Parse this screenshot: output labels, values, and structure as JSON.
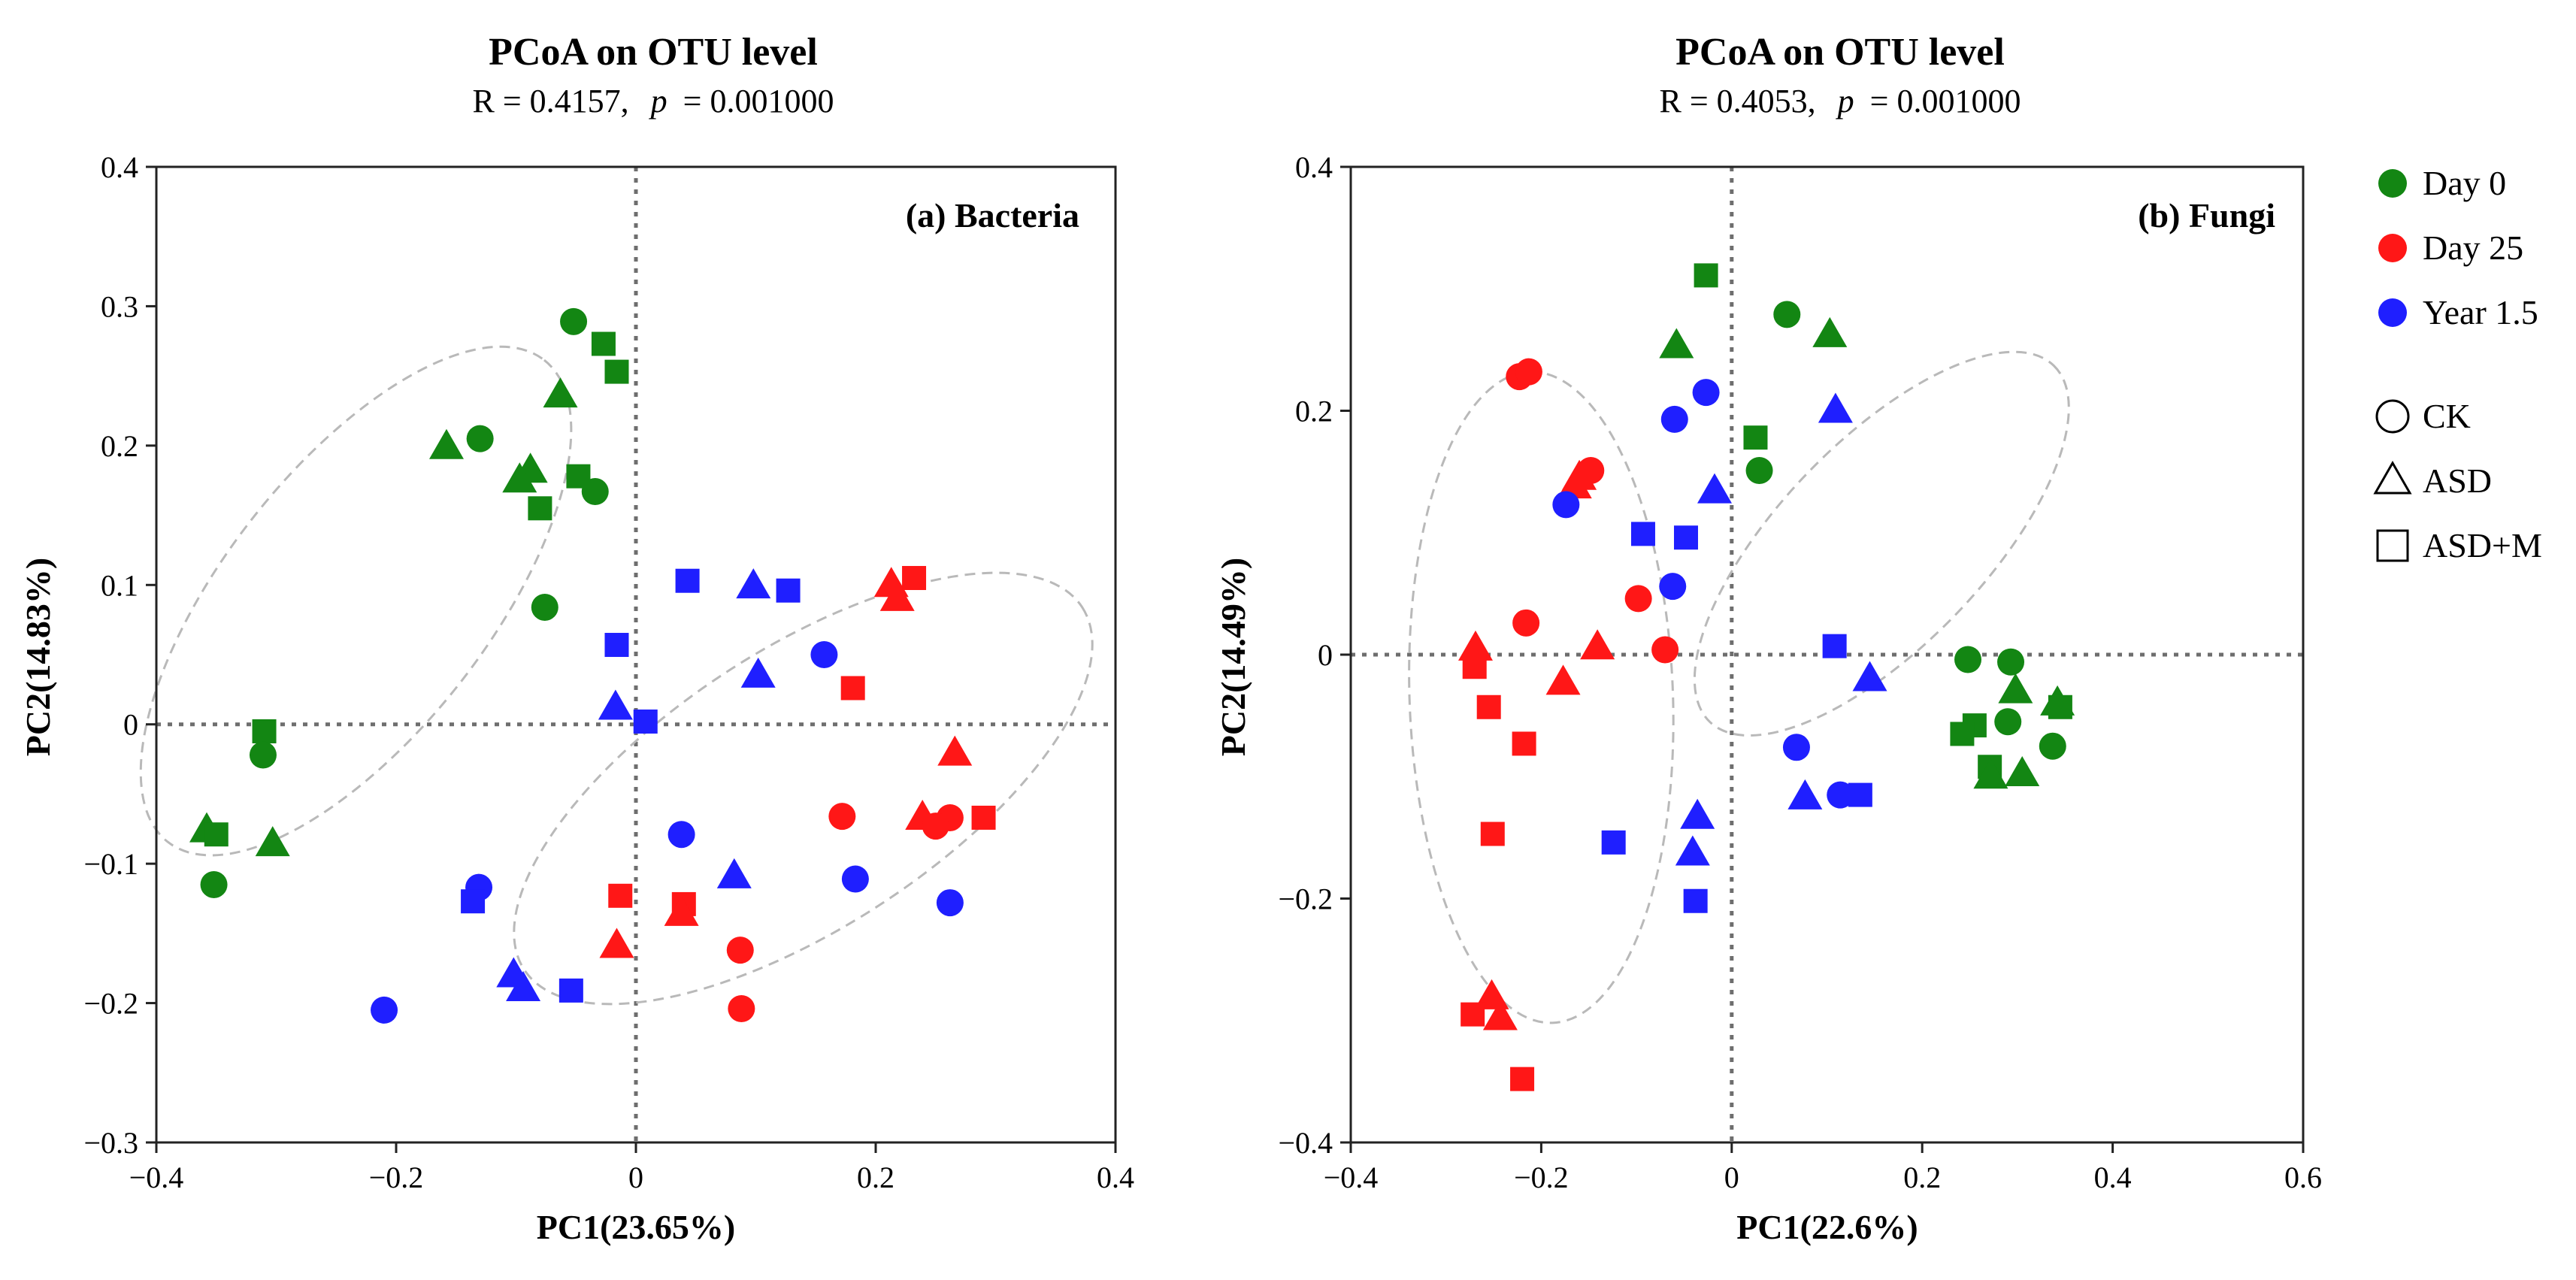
{
  "colors": {
    "day0": "#138613",
    "day25": "#ff1717",
    "year15": "#1f1fff",
    "axis": "#222222",
    "ellipse": "#b9b9b9",
    "zero": "#6e6e6e"
  },
  "legend": {
    "groups": [
      {
        "key": "day0",
        "label": "Day 0"
      },
      {
        "key": "day25",
        "label": "Day 25"
      },
      {
        "key": "year15",
        "label": "Year 1.5"
      }
    ],
    "treatments": [
      {
        "key": "circle",
        "label": "CK"
      },
      {
        "key": "triangle",
        "label": "ASD"
      },
      {
        "key": "square",
        "label": "ASD+M"
      }
    ]
  },
  "chart_data": [
    {
      "type": "scatter",
      "title": "PCoA on OTU level",
      "stat_r": "R = 0.4157,",
      "stat_p_label": "p",
      "stat_p_value": "= 0.001000",
      "panel_label": "(a) Bacteria",
      "xlabel": "PC1(23.65%)",
      "ylabel": "PC2(14.83%)",
      "xlim": [
        -0.4,
        0.4
      ],
      "ylim": [
        -0.3,
        0.4
      ],
      "xticks": [
        -0.4,
        -0.2,
        0,
        0.2,
        0.4
      ],
      "xtick_labels": [
        "−0.4",
        "−0.2",
        "0",
        "0.2",
        "0.4"
      ],
      "yticks": [
        -0.3,
        -0.2,
        -0.1,
        0,
        0.1,
        0.2,
        0.3,
        0.4
      ],
      "ytick_labels": [
        "−0.3",
        "−0.2",
        "−0.1",
        "0",
        "0.1",
        "0.2",
        "0.3",
        "0.4"
      ],
      "ellipses": [
        {
          "cx": -0.2335,
          "cy": 0.0885,
          "rx": 0.255,
          "ry": 0.095,
          "angle_deg": 52
        },
        {
          "cx": 0.1395,
          "cy": -0.046,
          "rx": 0.2775,
          "ry": 0.1,
          "angle_deg": 33
        }
      ],
      "points": [
        {
          "x": -0.052,
          "y": 0.289,
          "g": "day0",
          "s": "circle"
        },
        {
          "x": -0.027,
          "y": 0.273,
          "g": "day0",
          "s": "square"
        },
        {
          "x": -0.016,
          "y": 0.253,
          "g": "day0",
          "s": "square"
        },
        {
          "x": -0.13,
          "y": 0.205,
          "g": "day0",
          "s": "circle"
        },
        {
          "x": -0.063,
          "y": 0.236,
          "g": "day0",
          "s": "triangle"
        },
        {
          "x": -0.158,
          "y": 0.199,
          "g": "day0",
          "s": "triangle"
        },
        {
          "x": -0.088,
          "y": 0.182,
          "g": "day0",
          "s": "triangle"
        },
        {
          "x": -0.097,
          "y": 0.175,
          "g": "day0",
          "s": "triangle"
        },
        {
          "x": -0.048,
          "y": 0.178,
          "g": "day0",
          "s": "square"
        },
        {
          "x": -0.034,
          "y": 0.167,
          "g": "day0",
          "s": "circle"
        },
        {
          "x": -0.08,
          "y": 0.155,
          "g": "day0",
          "s": "square"
        },
        {
          "x": -0.076,
          "y": 0.084,
          "g": "day0",
          "s": "circle"
        },
        {
          "x": -0.31,
          "y": -0.005,
          "g": "day0",
          "s": "square"
        },
        {
          "x": -0.311,
          "y": -0.022,
          "g": "day0",
          "s": "circle"
        },
        {
          "x": -0.358,
          "y": -0.076,
          "g": "day0",
          "s": "triangle"
        },
        {
          "x": -0.35,
          "y": -0.079,
          "g": "day0",
          "s": "square"
        },
        {
          "x": -0.303,
          "y": -0.086,
          "g": "day0",
          "s": "triangle"
        },
        {
          "x": -0.352,
          "y": -0.115,
          "g": "day0",
          "s": "circle"
        },
        {
          "x": 0.213,
          "y": 0.1,
          "g": "day25",
          "s": "triangle"
        },
        {
          "x": 0.232,
          "y": 0.105,
          "g": "day25",
          "s": "square"
        },
        {
          "x": 0.218,
          "y": 0.09,
          "g": "day25",
          "s": "triangle"
        },
        {
          "x": 0.181,
          "y": 0.026,
          "g": "day25",
          "s": "square"
        },
        {
          "x": 0.266,
          "y": -0.021,
          "g": "day25",
          "s": "triangle"
        },
        {
          "x": 0.172,
          "y": -0.066,
          "g": "day25",
          "s": "circle"
        },
        {
          "x": 0.239,
          "y": -0.067,
          "g": "day25",
          "s": "triangle"
        },
        {
          "x": 0.262,
          "y": -0.067,
          "g": "day25",
          "s": "circle"
        },
        {
          "x": 0.25,
          "y": -0.073,
          "g": "day25",
          "s": "circle"
        },
        {
          "x": 0.29,
          "y": -0.067,
          "g": "day25",
          "s": "square"
        },
        {
          "x": -0.013,
          "y": -0.123,
          "g": "day25",
          "s": "square"
        },
        {
          "x": 0.04,
          "y": -0.129,
          "g": "day25",
          "s": "square"
        },
        {
          "x": 0.038,
          "y": -0.136,
          "g": "day25",
          "s": "triangle"
        },
        {
          "x": -0.016,
          "y": -0.159,
          "g": "day25",
          "s": "triangle"
        },
        {
          "x": 0.087,
          "y": -0.162,
          "g": "day25",
          "s": "circle"
        },
        {
          "x": 0.088,
          "y": -0.204,
          "g": "day25",
          "s": "circle"
        },
        {
          "x": 0.043,
          "y": 0.103,
          "g": "year15",
          "s": "square"
        },
        {
          "x": 0.098,
          "y": 0.099,
          "g": "year15",
          "s": "triangle"
        },
        {
          "x": 0.127,
          "y": 0.096,
          "g": "year15",
          "s": "square"
        },
        {
          "x": -0.016,
          "y": 0.057,
          "g": "year15",
          "s": "square"
        },
        {
          "x": 0.157,
          "y": 0.05,
          "g": "year15",
          "s": "circle"
        },
        {
          "x": 0.102,
          "y": 0.035,
          "g": "year15",
          "s": "triangle"
        },
        {
          "x": -0.017,
          "y": 0.012,
          "g": "year15",
          "s": "triangle"
        },
        {
          "x": 0.008,
          "y": 0.002,
          "g": "year15",
          "s": "square"
        },
        {
          "x": 0.038,
          "y": -0.079,
          "g": "year15",
          "s": "circle"
        },
        {
          "x": 0.082,
          "y": -0.109,
          "g": "year15",
          "s": "triangle"
        },
        {
          "x": 0.183,
          "y": -0.111,
          "g": "year15",
          "s": "circle"
        },
        {
          "x": 0.262,
          "y": -0.128,
          "g": "year15",
          "s": "circle"
        },
        {
          "x": -0.131,
          "y": -0.117,
          "g": "year15",
          "s": "circle"
        },
        {
          "x": -0.136,
          "y": -0.127,
          "g": "year15",
          "s": "square"
        },
        {
          "x": -0.102,
          "y": -0.18,
          "g": "year15",
          "s": "triangle"
        },
        {
          "x": -0.094,
          "y": -0.19,
          "g": "year15",
          "s": "triangle"
        },
        {
          "x": -0.054,
          "y": -0.191,
          "g": "year15",
          "s": "square"
        },
        {
          "x": -0.21,
          "y": -0.205,
          "g": "year15",
          "s": "circle"
        }
      ]
    },
    {
      "type": "scatter",
      "title": "PCoA on OTU level",
      "stat_r": "R = 0.4053,",
      "stat_p_label": "p",
      "stat_p_value": "= 0.001000",
      "panel_label": "(b) Fungi",
      "xlabel": "PC1(22.6%)",
      "ylabel": "PC2(14.49%)",
      "xlim": [
        -0.4,
        0.6
      ],
      "ylim": [
        -0.4,
        0.4
      ],
      "xticks": [
        -0.4,
        -0.2,
        0,
        0.2,
        0.4,
        0.6
      ],
      "xtick_labels": [
        "−0.4",
        "−0.2",
        "0",
        "0.2",
        "0.4",
        "0.6"
      ],
      "yticks": [
        -0.4,
        -0.2,
        0,
        0.2,
        0.4
      ],
      "ytick_labels": [
        "−0.4",
        "−0.2",
        "0",
        "0.2",
        "0.4"
      ],
      "ellipses": [
        {
          "cx": -0.2,
          "cy": -0.035,
          "rx": 0.342,
          "ry": 0.108,
          "angle_deg": 92
        },
        {
          "cx": 0.1575,
          "cy": 0.091,
          "rx": 0.26,
          "ry": 0.084,
          "angle_deg": 46
        }
      ],
      "points": [
        {
          "x": -0.027,
          "y": 0.311,
          "g": "day0",
          "s": "square"
        },
        {
          "x": 0.058,
          "y": 0.279,
          "g": "day0",
          "s": "circle"
        },
        {
          "x": 0.103,
          "y": 0.262,
          "g": "day0",
          "s": "triangle"
        },
        {
          "x": -0.058,
          "y": 0.253,
          "g": "day0",
          "s": "triangle"
        },
        {
          "x": 0.025,
          "y": 0.178,
          "g": "day0",
          "s": "square"
        },
        {
          "x": 0.029,
          "y": 0.151,
          "g": "day0",
          "s": "circle"
        },
        {
          "x": 0.248,
          "y": -0.004,
          "g": "day0",
          "s": "circle"
        },
        {
          "x": 0.293,
          "y": -0.006,
          "g": "day0",
          "s": "circle"
        },
        {
          "x": 0.342,
          "y": -0.04,
          "g": "day0",
          "s": "triangle"
        },
        {
          "x": 0.345,
          "y": -0.043,
          "g": "day0",
          "s": "square"
        },
        {
          "x": 0.298,
          "y": -0.03,
          "g": "day0",
          "s": "triangle"
        },
        {
          "x": 0.255,
          "y": -0.058,
          "g": "day0",
          "s": "square"
        },
        {
          "x": 0.29,
          "y": -0.055,
          "g": "day0",
          "s": "circle"
        },
        {
          "x": 0.242,
          "y": -0.065,
          "g": "day0",
          "s": "square"
        },
        {
          "x": 0.337,
          "y": -0.075,
          "g": "day0",
          "s": "circle"
        },
        {
          "x": 0.271,
          "y": -0.092,
          "g": "day0",
          "s": "square"
        },
        {
          "x": 0.305,
          "y": -0.098,
          "g": "day0",
          "s": "triangle"
        },
        {
          "x": 0.272,
          "y": -0.1,
          "g": "day0",
          "s": "triangle"
        },
        {
          "x": -0.223,
          "y": 0.228,
          "g": "day25",
          "s": "circle"
        },
        {
          "x": -0.213,
          "y": 0.232,
          "g": "day25",
          "s": "circle"
        },
        {
          "x": -0.148,
          "y": 0.151,
          "g": "day25",
          "s": "circle"
        },
        {
          "x": -0.16,
          "y": 0.145,
          "g": "day25",
          "s": "triangle"
        },
        {
          "x": -0.165,
          "y": 0.138,
          "g": "day25",
          "s": "triangle"
        },
        {
          "x": -0.098,
          "y": 0.046,
          "g": "day25",
          "s": "circle"
        },
        {
          "x": -0.216,
          "y": 0.026,
          "g": "day25",
          "s": "circle"
        },
        {
          "x": -0.07,
          "y": 0.004,
          "g": "day25",
          "s": "circle"
        },
        {
          "x": -0.141,
          "y": 0.006,
          "g": "day25",
          "s": "triangle"
        },
        {
          "x": -0.269,
          "y": 0.005,
          "g": "day25",
          "s": "triangle"
        },
        {
          "x": -0.27,
          "y": -0.01,
          "g": "day25",
          "s": "square"
        },
        {
          "x": -0.177,
          "y": -0.023,
          "g": "day25",
          "s": "triangle"
        },
        {
          "x": -0.255,
          "y": -0.043,
          "g": "day25",
          "s": "square"
        },
        {
          "x": -0.218,
          "y": -0.073,
          "g": "day25",
          "s": "square"
        },
        {
          "x": -0.251,
          "y": -0.147,
          "g": "day25",
          "s": "square"
        },
        {
          "x": -0.252,
          "y": -0.281,
          "g": "day25",
          "s": "triangle"
        },
        {
          "x": -0.272,
          "y": -0.295,
          "g": "day25",
          "s": "square"
        },
        {
          "x": -0.243,
          "y": -0.298,
          "g": "day25",
          "s": "triangle"
        },
        {
          "x": -0.22,
          "y": -0.348,
          "g": "day25",
          "s": "square"
        },
        {
          "x": -0.027,
          "y": 0.215,
          "g": "year15",
          "s": "circle"
        },
        {
          "x": -0.06,
          "y": 0.193,
          "g": "year15",
          "s": "circle"
        },
        {
          "x": 0.109,
          "y": 0.2,
          "g": "year15",
          "s": "triangle"
        },
        {
          "x": -0.018,
          "y": 0.134,
          "g": "year15",
          "s": "triangle"
        },
        {
          "x": -0.174,
          "y": 0.123,
          "g": "year15",
          "s": "circle"
        },
        {
          "x": -0.093,
          "y": 0.099,
          "g": "year15",
          "s": "square"
        },
        {
          "x": -0.048,
          "y": 0.096,
          "g": "year15",
          "s": "square"
        },
        {
          "x": -0.062,
          "y": 0.056,
          "g": "year15",
          "s": "circle"
        },
        {
          "x": 0.108,
          "y": 0.007,
          "g": "year15",
          "s": "square"
        },
        {
          "x": 0.145,
          "y": -0.02,
          "g": "year15",
          "s": "triangle"
        },
        {
          "x": 0.068,
          "y": -0.076,
          "g": "year15",
          "s": "circle"
        },
        {
          "x": 0.077,
          "y": -0.117,
          "g": "year15",
          "s": "triangle"
        },
        {
          "x": 0.114,
          "y": -0.115,
          "g": "year15",
          "s": "circle"
        },
        {
          "x": 0.135,
          "y": -0.115,
          "g": "year15",
          "s": "square"
        },
        {
          "x": -0.036,
          "y": -0.133,
          "g": "year15",
          "s": "triangle"
        },
        {
          "x": -0.124,
          "y": -0.154,
          "g": "year15",
          "s": "square"
        },
        {
          "x": -0.041,
          "y": -0.163,
          "g": "year15",
          "s": "triangle"
        },
        {
          "x": -0.038,
          "y": -0.202,
          "g": "year15",
          "s": "square"
        }
      ]
    }
  ]
}
